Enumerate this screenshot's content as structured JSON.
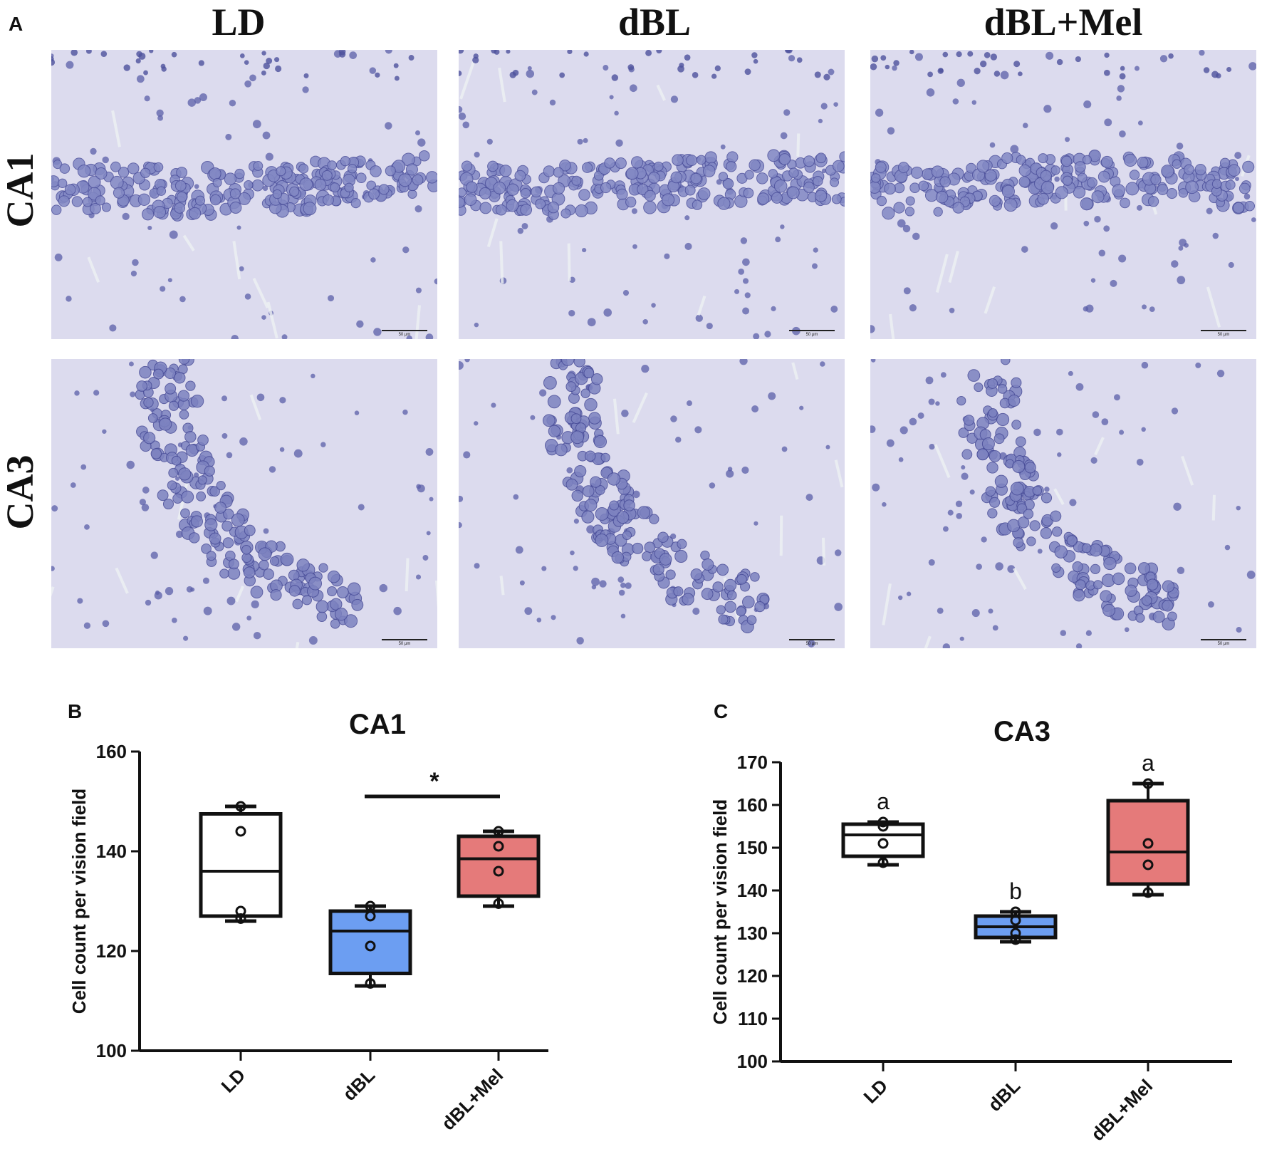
{
  "panel_a": {
    "letter": "A",
    "columns": [
      "LD",
      "dBL",
      "dBL+Mel"
    ],
    "rows": [
      "CA1",
      "CA3"
    ],
    "scale_bar_label": "50 μm"
  },
  "chart_data": [
    {
      "panel": "B",
      "type": "box",
      "title": "CA1",
      "ylabel": "Cell count per vision field",
      "ylim": [
        100,
        160
      ],
      "yticks": [
        100,
        120,
        140,
        160
      ],
      "categories": [
        "LD",
        "dBL",
        "dBL+Mel"
      ],
      "boxes": [
        {
          "name": "LD",
          "min": 126,
          "q1": 127,
          "median": 136,
          "q3": 147.5,
          "max": 149,
          "points": [
            149,
            144,
            128,
            126.5
          ],
          "color": "#ffffff"
        },
        {
          "name": "dBL",
          "min": 113,
          "q1": 115.5,
          "median": 124,
          "q3": 128,
          "max": 129,
          "points": [
            129,
            127,
            121,
            113.5
          ],
          "color": "#6c9ef2"
        },
        {
          "name": "dBL+Mel",
          "min": 129,
          "q1": 131,
          "median": 138.5,
          "q3": 143,
          "max": 144,
          "points": [
            144,
            141,
            136,
            129.5
          ],
          "color": "#e57a7a"
        }
      ],
      "significance": {
        "from": "dBL",
        "to": "dBL+Mel",
        "label": "*",
        "y": 151
      }
    },
    {
      "panel": "C",
      "type": "box",
      "title": "CA3",
      "ylabel": "Cell count per vision field",
      "ylim": [
        100,
        170
      ],
      "yticks": [
        100,
        110,
        120,
        130,
        140,
        150,
        160,
        170
      ],
      "categories": [
        "LD",
        "dBL",
        "dBL+Mel"
      ],
      "boxes": [
        {
          "name": "LD",
          "min": 146,
          "q1": 148,
          "median": 153,
          "q3": 155.5,
          "max": 156,
          "points": [
            156,
            155,
            151,
            146.5
          ],
          "color": "#ffffff",
          "letter": "a"
        },
        {
          "name": "dBL",
          "min": 128,
          "q1": 129,
          "median": 131.5,
          "q3": 134,
          "max": 135,
          "points": [
            135,
            133,
            130,
            128.5
          ],
          "color": "#6c9ef2",
          "letter": "b"
        },
        {
          "name": "dBL+Mel",
          "min": 139,
          "q1": 141.5,
          "median": 149,
          "q3": 161,
          "max": 165,
          "points": [
            165,
            151,
            146,
            139.5
          ],
          "color": "#e57a7a",
          "letter": "a"
        }
      ]
    }
  ]
}
